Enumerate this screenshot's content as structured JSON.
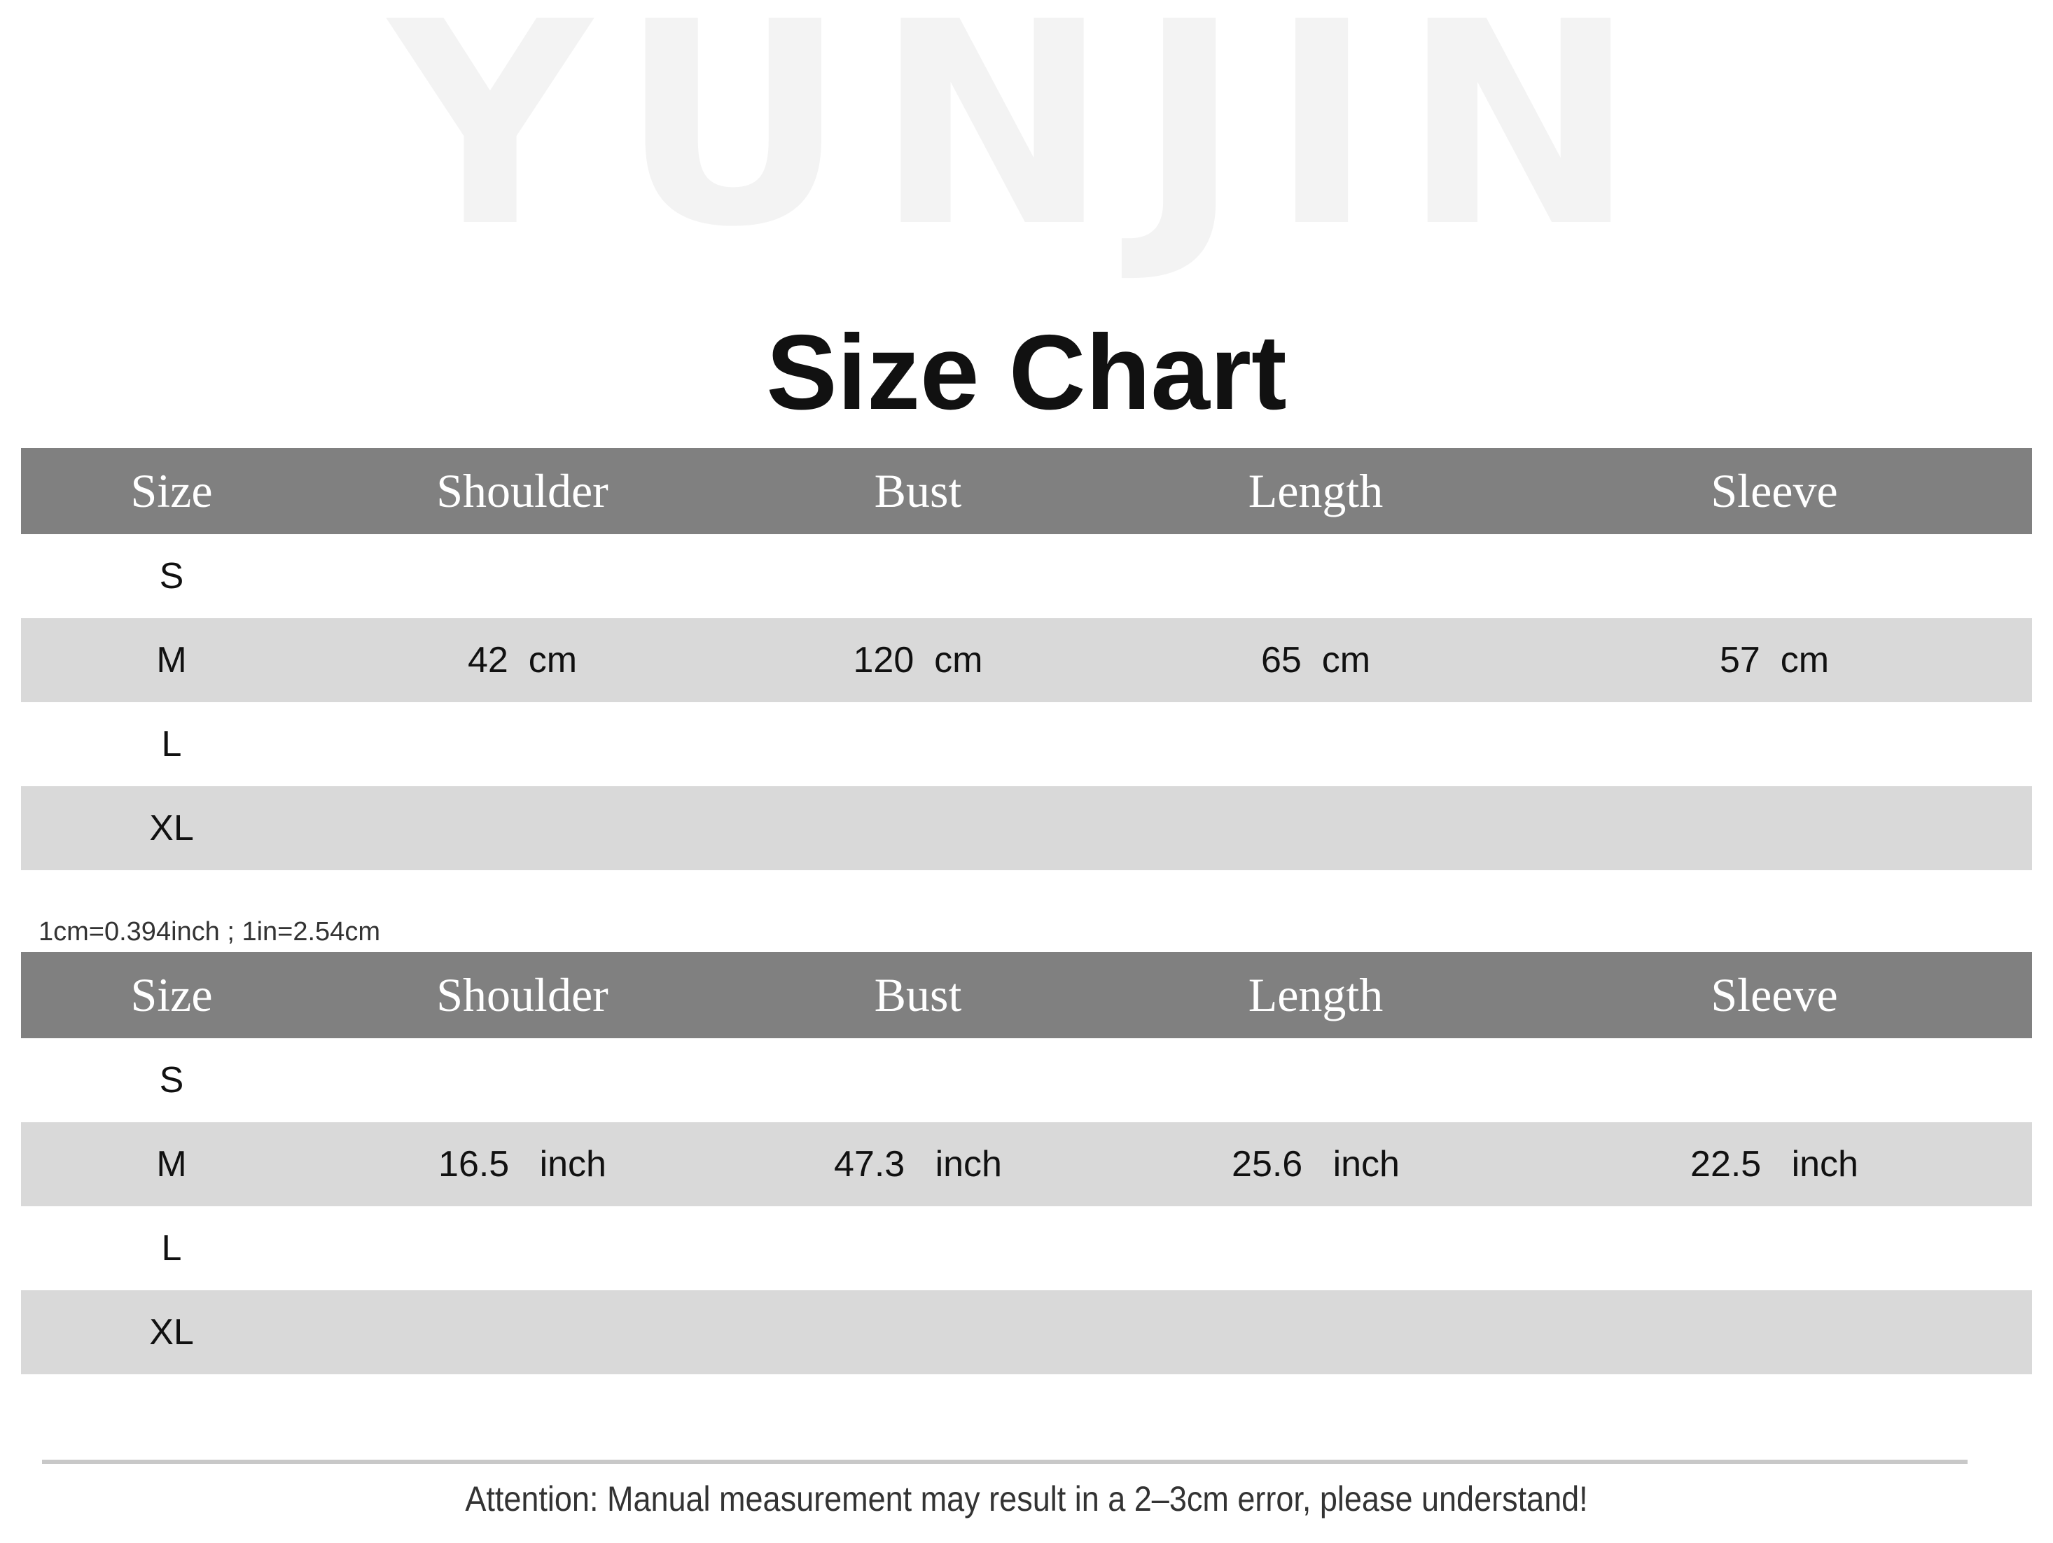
{
  "brand_watermark": "YUNJIN",
  "title": "Size Chart",
  "cm_table": {
    "headers": [
      "Size",
      "Shoulder",
      "Bust",
      "Length",
      "Sleeve"
    ],
    "rows": [
      [
        "S",
        "",
        "",
        "",
        ""
      ],
      [
        "M",
        "42  cm",
        "120  cm",
        "65  cm",
        "57  cm"
      ],
      [
        "L",
        "",
        "",
        "",
        ""
      ],
      [
        "XL",
        "",
        "",
        "",
        ""
      ]
    ]
  },
  "conversion_note": "1cm=0.394inch ; 1in=2.54cm",
  "inch_table": {
    "headers": [
      "Size",
      "Shoulder",
      "Bust",
      "Length",
      "Sleeve"
    ],
    "rows": [
      [
        "S",
        "",
        "",
        "",
        ""
      ],
      [
        "M",
        "16.5   inch",
        "47.3   inch",
        "25.6   inch",
        "22.5   inch"
      ],
      [
        "L",
        "",
        "",
        "",
        ""
      ],
      [
        "XL",
        "",
        "",
        "",
        ""
      ]
    ]
  },
  "attention": "Attention: Manual measurement may result in a 2–3cm error, please understand!",
  "colors": {
    "header_bg": "#808080",
    "alt_row_bg": "#d9d9d9",
    "watermark": "#f3f3f3"
  }
}
